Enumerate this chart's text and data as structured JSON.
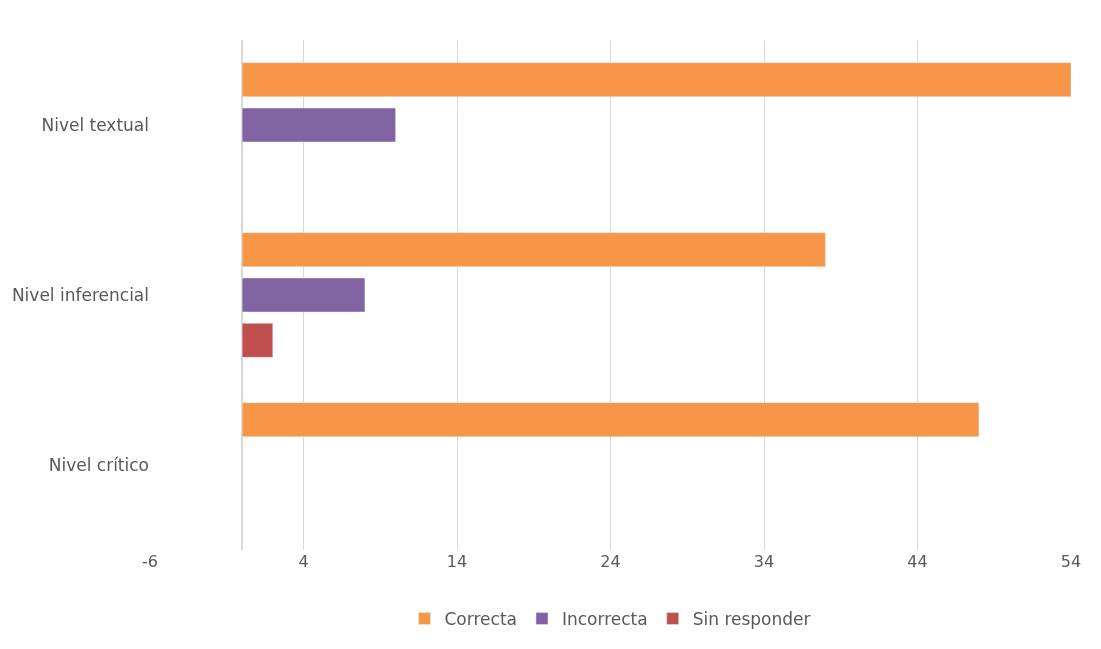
{
  "chart_data": {
    "type": "bar",
    "orientation": "horizontal",
    "categories": [
      "Nivel textual",
      "Nivel inferencial",
      "Nivel crítico"
    ],
    "series": [
      {
        "name": "Correcta",
        "color": "#f79646",
        "values": [
          54,
          38,
          48
        ]
      },
      {
        "name": "Incorrecta",
        "color": "#8064a2",
        "values": [
          10,
          8,
          null
        ]
      },
      {
        "name": "Sin responder",
        "color": "#c0504d",
        "values": [
          null,
          2,
          null
        ]
      }
    ],
    "xlim": [
      -6,
      54
    ],
    "xticks": [
      -6,
      4,
      14,
      24,
      34,
      44,
      54
    ],
    "grid": "x",
    "legend": "bottom"
  }
}
